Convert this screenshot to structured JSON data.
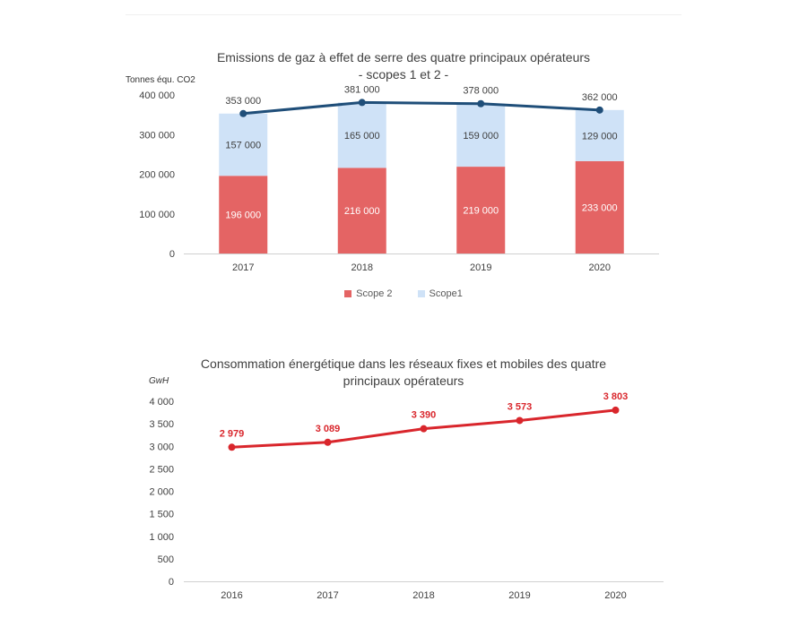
{
  "chart_data": [
    {
      "type": "bar",
      "stacked": true,
      "title_line1": "Emissions de gaz à effet de serre des quatre principaux opérateurs",
      "title_line2": "- scopes 1 et 2 -",
      "ylabel": "Tonnes équ. CO2",
      "ylim": [
        0,
        400000
      ],
      "yticks": [
        0,
        100000,
        200000,
        300000,
        400000
      ],
      "ytick_labels": [
        "0",
        "100 000",
        "200 000",
        "300 000",
        "400 000"
      ],
      "categories": [
        "2017",
        "2018",
        "2019",
        "2020"
      ],
      "series": [
        {
          "name": "Scope 2",
          "values": [
            196000,
            216000,
            219000,
            233000
          ],
          "labels": [
            "196 000",
            "216 000",
            "219 000",
            "233 000"
          ],
          "color": "#e46464"
        },
        {
          "name": "Scope1",
          "values": [
            157000,
            165000,
            159000,
            129000
          ],
          "labels": [
            "157 000",
            "165 000",
            "159 000",
            "129 000"
          ],
          "color": "#cfe2f7"
        }
      ],
      "total_line": {
        "values": [
          353000,
          381000,
          378000,
          362000
        ],
        "labels": [
          "353 000",
          "381 000",
          "378 000",
          "362 000"
        ],
        "color": "#1f4e79"
      },
      "legend_position": "bottom",
      "grid": false
    },
    {
      "type": "line",
      "title_line1": "Consommation énergétique dans les réseaux fixes et mobiles des quatre",
      "title_line2": "principaux opérateurs",
      "ylabel": "GwH",
      "ylim": [
        0,
        4000
      ],
      "yticks": [
        0,
        500,
        1000,
        1500,
        2000,
        2500,
        3000,
        3500,
        4000
      ],
      "ytick_labels": [
        "0",
        "500",
        "1 000",
        "1 500",
        "2 000",
        "2 500",
        "3 000",
        "3 500",
        "4 000"
      ],
      "categories": [
        "2016",
        "2017",
        "2018",
        "2019",
        "2020"
      ],
      "series": [
        {
          "values": [
            2979,
            3089,
            3390,
            3573,
            3803
          ],
          "labels": [
            "2 979",
            "3 089",
            "3 390",
            "3 573",
            "3 803"
          ],
          "color": "#d9262c"
        }
      ],
      "legend_position": "none",
      "grid": false
    }
  ]
}
